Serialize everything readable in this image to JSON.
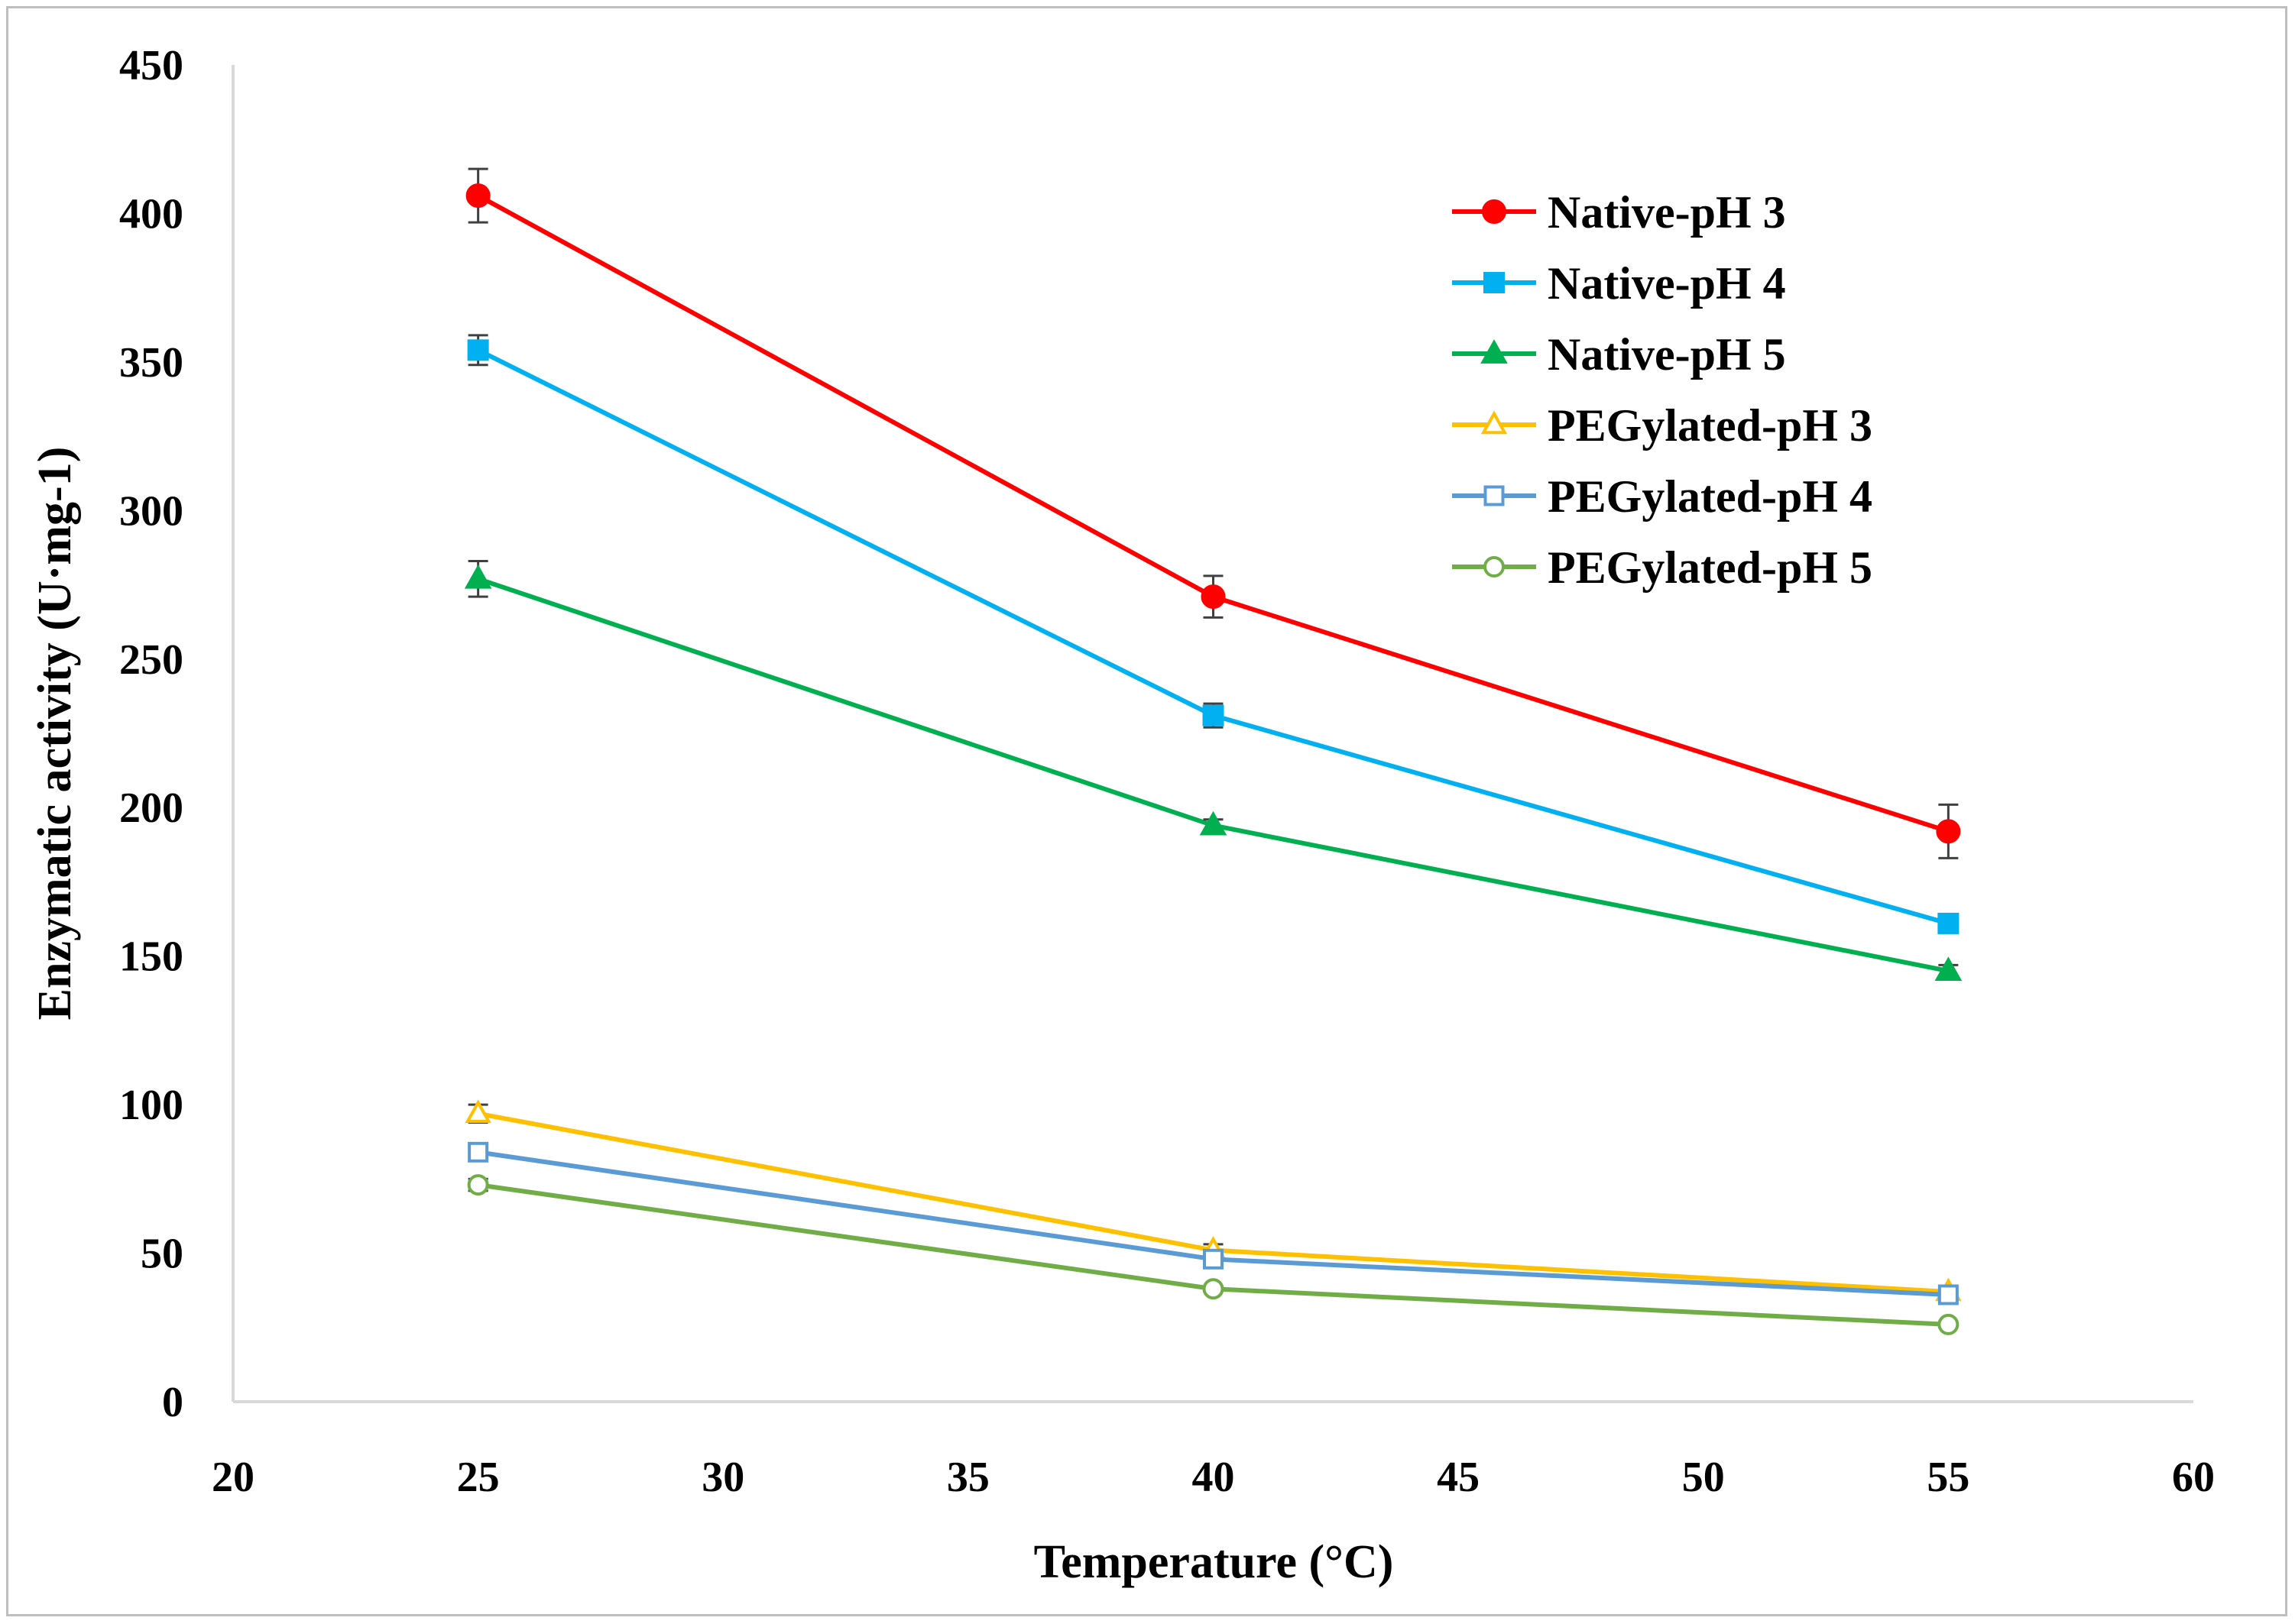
{
  "chart_data": {
    "type": "line",
    "title": "",
    "xlabel": "Temperature (°C)",
    "ylabel": "Enzymatic activity (U·mg-1)",
    "xlim": [
      20,
      60
    ],
    "ylim": [
      0,
      450
    ],
    "x_ticks": [
      "20",
      "25",
      "30",
      "35",
      "40",
      "45",
      "50",
      "55",
      "60"
    ],
    "y_ticks": [
      "0",
      "50",
      "100",
      "150",
      "200",
      "250",
      "300",
      "350",
      "400",
      "450"
    ],
    "grid": false,
    "legend_position": "top-right",
    "x": [
      25,
      40,
      55
    ],
    "series": [
      {
        "name": "Native-pH 3",
        "values": [
          406,
          271,
          192
        ],
        "errors": [
          9,
          7,
          9
        ],
        "color": "#ff0000",
        "marker": "circle",
        "filled": true
      },
      {
        "name": "Native-pH 4",
        "values": [
          354,
          231,
          161
        ],
        "errors": [
          5,
          4,
          3
        ],
        "color": "#00b0f0",
        "marker": "square",
        "filled": true
      },
      {
        "name": "Native-pH 5",
        "values": [
          277,
          194,
          145
        ],
        "errors": [
          6,
          2,
          2
        ],
        "color": "#00b050",
        "marker": "triangle",
        "filled": true
      },
      {
        "name": "PEGylated-pH 3",
        "values": [
          97,
          51,
          37
        ],
        "errors": [
          3,
          2,
          2
        ],
        "color": "#ffc000",
        "marker": "triangle",
        "filled": false
      },
      {
        "name": "PEGylated-pH 4",
        "values": [
          84,
          48,
          36
        ],
        "errors": [
          2,
          2,
          2
        ],
        "color": "#5b9bd5",
        "marker": "square",
        "filled": false
      },
      {
        "name": "PEGylated-pH 5",
        "values": [
          73,
          38,
          26
        ],
        "errors": [
          2,
          1,
          1
        ],
        "color": "#70ad47",
        "marker": "circle",
        "filled": false
      }
    ]
  }
}
